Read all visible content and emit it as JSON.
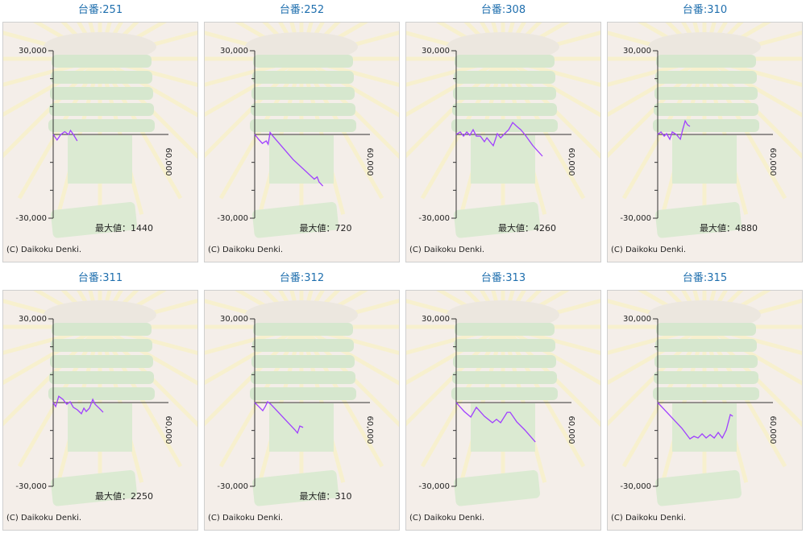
{
  "chart_data": [
    {
      "type": "line",
      "title": "台番:251",
      "annotation": "最大値：1440",
      "credit": "(C) Daikoku Denki.",
      "color": "#a040ff",
      "xlim": [
        0,
        60000
      ],
      "ylim": [
        -30000,
        30000
      ],
      "xticks": [
        {
          "value": 60000,
          "label": "60,000"
        }
      ],
      "yticks": [
        {
          "value": 30000,
          "label": "30,000"
        },
        {
          "value": -30000,
          "label": "-30,000"
        }
      ],
      "yminorticks": [
        -20000,
        -10000,
        10000,
        20000
      ],
      "x": [
        0,
        2000,
        4000,
        6000,
        8000,
        9000,
        10500,
        12500
      ],
      "values": [
        0,
        -2000,
        0,
        1000,
        0,
        1440,
        0,
        -2300
      ]
    },
    {
      "type": "line",
      "title": "台番:252",
      "annotation": "最大値：720",
      "credit": "(C) Daikoku Denki.",
      "color": "#a040ff",
      "xlim": [
        0,
        60000
      ],
      "ylim": [
        -30000,
        30000
      ],
      "xticks": [
        {
          "value": 60000,
          "label": "60,000"
        }
      ],
      "yticks": [
        {
          "value": 30000,
          "label": "30,000"
        },
        {
          "value": -30000,
          "label": "-30,000"
        }
      ],
      "yminorticks": [
        -20000,
        -10000,
        10000,
        20000
      ],
      "x": [
        0,
        2000,
        4000,
        6000,
        7000,
        8000,
        9500,
        20000,
        31000,
        32500,
        33500,
        35500
      ],
      "values": [
        0,
        -1700,
        -3200,
        -2300,
        -3500,
        720,
        -600,
        -9000,
        -16000,
        -15200,
        -17000,
        -18500
      ]
    },
    {
      "type": "line",
      "title": "台番:308",
      "annotation": "最大値：4260",
      "credit": "(C) Daikoku Denki.",
      "color": "#a040ff",
      "xlim": [
        0,
        60000
      ],
      "ylim": [
        -30000,
        30000
      ],
      "xticks": [
        {
          "value": 60000,
          "label": "60,000"
        }
      ],
      "yticks": [
        {
          "value": 30000,
          "label": "30,000"
        },
        {
          "value": -30000,
          "label": "-30,000"
        }
      ],
      "yminorticks": [
        -20000,
        -10000,
        10000,
        20000
      ],
      "x": [
        0,
        2100,
        3800,
        5500,
        7100,
        8800,
        10500,
        12600,
        14700,
        16000,
        17600,
        19300,
        21400,
        23100,
        25200,
        27300,
        29400,
        31500,
        33600,
        35700,
        39900,
        44900
      ],
      "values": [
        0,
        900,
        -600,
        900,
        -300,
        1700,
        -600,
        -600,
        -2600,
        -1200,
        -2600,
        -4000,
        300,
        -1200,
        300,
        1700,
        4260,
        2900,
        1700,
        0,
        -4000,
        -7800
      ]
    },
    {
      "type": "line",
      "title": "台番:310",
      "annotation": "最大値：4880",
      "credit": "(C) Daikoku Denki.",
      "color": "#a040ff",
      "xlim": [
        0,
        60000
      ],
      "ylim": [
        -30000,
        30000
      ],
      "xticks": [
        {
          "value": 60000,
          "label": "60,000"
        }
      ],
      "yticks": [
        {
          "value": 30000,
          "label": "30,000"
        },
        {
          "value": -30000,
          "label": "-30,000"
        }
      ],
      "yminorticks": [
        -20000,
        -10000,
        10000,
        20000
      ],
      "x": [
        0,
        1700,
        3400,
        4600,
        6300,
        7600,
        9700,
        11800,
        13000,
        14300,
        15500,
        16800
      ],
      "values": [
        0,
        900,
        -600,
        300,
        -1700,
        900,
        0,
        -1700,
        1700,
        4880,
        3500,
        2900
      ]
    },
    {
      "type": "line",
      "title": "台番:311",
      "annotation": "最大値：2250",
      "credit": "(C) Daikoku Denki.",
      "color": "#a040ff",
      "xlim": [
        0,
        60000
      ],
      "ylim": [
        -30000,
        30000
      ],
      "xticks": [
        {
          "value": 60000,
          "label": "60,000"
        }
      ],
      "yticks": [
        {
          "value": 30000,
          "label": "30,000"
        },
        {
          "value": -30000,
          "label": "-30,000"
        }
      ],
      "yminorticks": [
        -20000,
        -10000,
        10000,
        20000
      ],
      "x": [
        0,
        1300,
        2900,
        5000,
        7100,
        8800,
        10500,
        12600,
        14700,
        16000,
        17200,
        18900,
        20600,
        21800,
        23900,
        26000
      ],
      "values": [
        0,
        -1400,
        2250,
        1200,
        -600,
        300,
        -1700,
        -2600,
        -4000,
        -2000,
        -3200,
        -2000,
        1150,
        -600,
        -2000,
        -3500
      ]
    },
    {
      "type": "line",
      "title": "台番:312",
      "annotation": "最大値：310",
      "credit": "(C) Daikoku Denki.",
      "color": "#a040ff",
      "xlim": [
        0,
        60000
      ],
      "ylim": [
        -30000,
        30000
      ],
      "xticks": [
        {
          "value": 60000,
          "label": "60,000"
        }
      ],
      "yticks": [
        {
          "value": 30000,
          "label": "30,000"
        },
        {
          "value": -30000,
          "label": "-30,000"
        }
      ],
      "yminorticks": [
        -20000,
        -10000,
        10000,
        20000
      ],
      "x": [
        0,
        2100,
        4200,
        5500,
        6700,
        8400,
        21000,
        22300,
        23500,
        25200
      ],
      "values": [
        0,
        -1400,
        -2900,
        -1400,
        310,
        -600,
        -9800,
        -10900,
        -8400,
        -8900
      ]
    },
    {
      "type": "line",
      "title": "台番:313",
      "credit": "(C) Daikoku Denki.",
      "color": "#a040ff",
      "xlim": [
        0,
        60000
      ],
      "ylim": [
        -30000,
        30000
      ],
      "xticks": [
        {
          "value": 60000,
          "label": "60,000"
        }
      ],
      "yticks": [
        {
          "value": 30000,
          "label": "30,000"
        },
        {
          "value": -30000,
          "label": "-30,000"
        }
      ],
      "yminorticks": [
        -20000,
        -10000,
        10000,
        20000
      ],
      "x": [
        0,
        4200,
        7600,
        10500,
        14700,
        18900,
        21000,
        23100,
        26500,
        28100,
        31500,
        35700,
        41200
      ],
      "values": [
        0,
        -3200,
        -5200,
        -1700,
        -4900,
        -7200,
        -6000,
        -7200,
        -3500,
        -3500,
        -6900,
        -9800,
        -14100
      ]
    },
    {
      "type": "line",
      "title": "台番:315",
      "credit": "(C) Daikoku Denki.",
      "color": "#a040ff",
      "xlim": [
        0,
        60000
      ],
      "ylim": [
        -30000,
        30000
      ],
      "xticks": [
        {
          "value": 60000,
          "label": "60,000"
        }
      ],
      "yticks": [
        {
          "value": 30000,
          "label": "30,000"
        },
        {
          "value": -30000,
          "label": "-30,000"
        }
      ],
      "yminorticks": [
        -20000,
        -10000,
        10000,
        20000
      ],
      "x": [
        0,
        6300,
        12600,
        16800,
        18900,
        21000,
        23100,
        25200,
        27300,
        29400,
        31500,
        33600,
        35700,
        37800,
        39100
      ],
      "values": [
        0,
        -4600,
        -9200,
        -13000,
        -12100,
        -12700,
        -11200,
        -12700,
        -11500,
        -12700,
        -10700,
        -12700,
        -9800,
        -4300,
        -4900
      ]
    }
  ]
}
